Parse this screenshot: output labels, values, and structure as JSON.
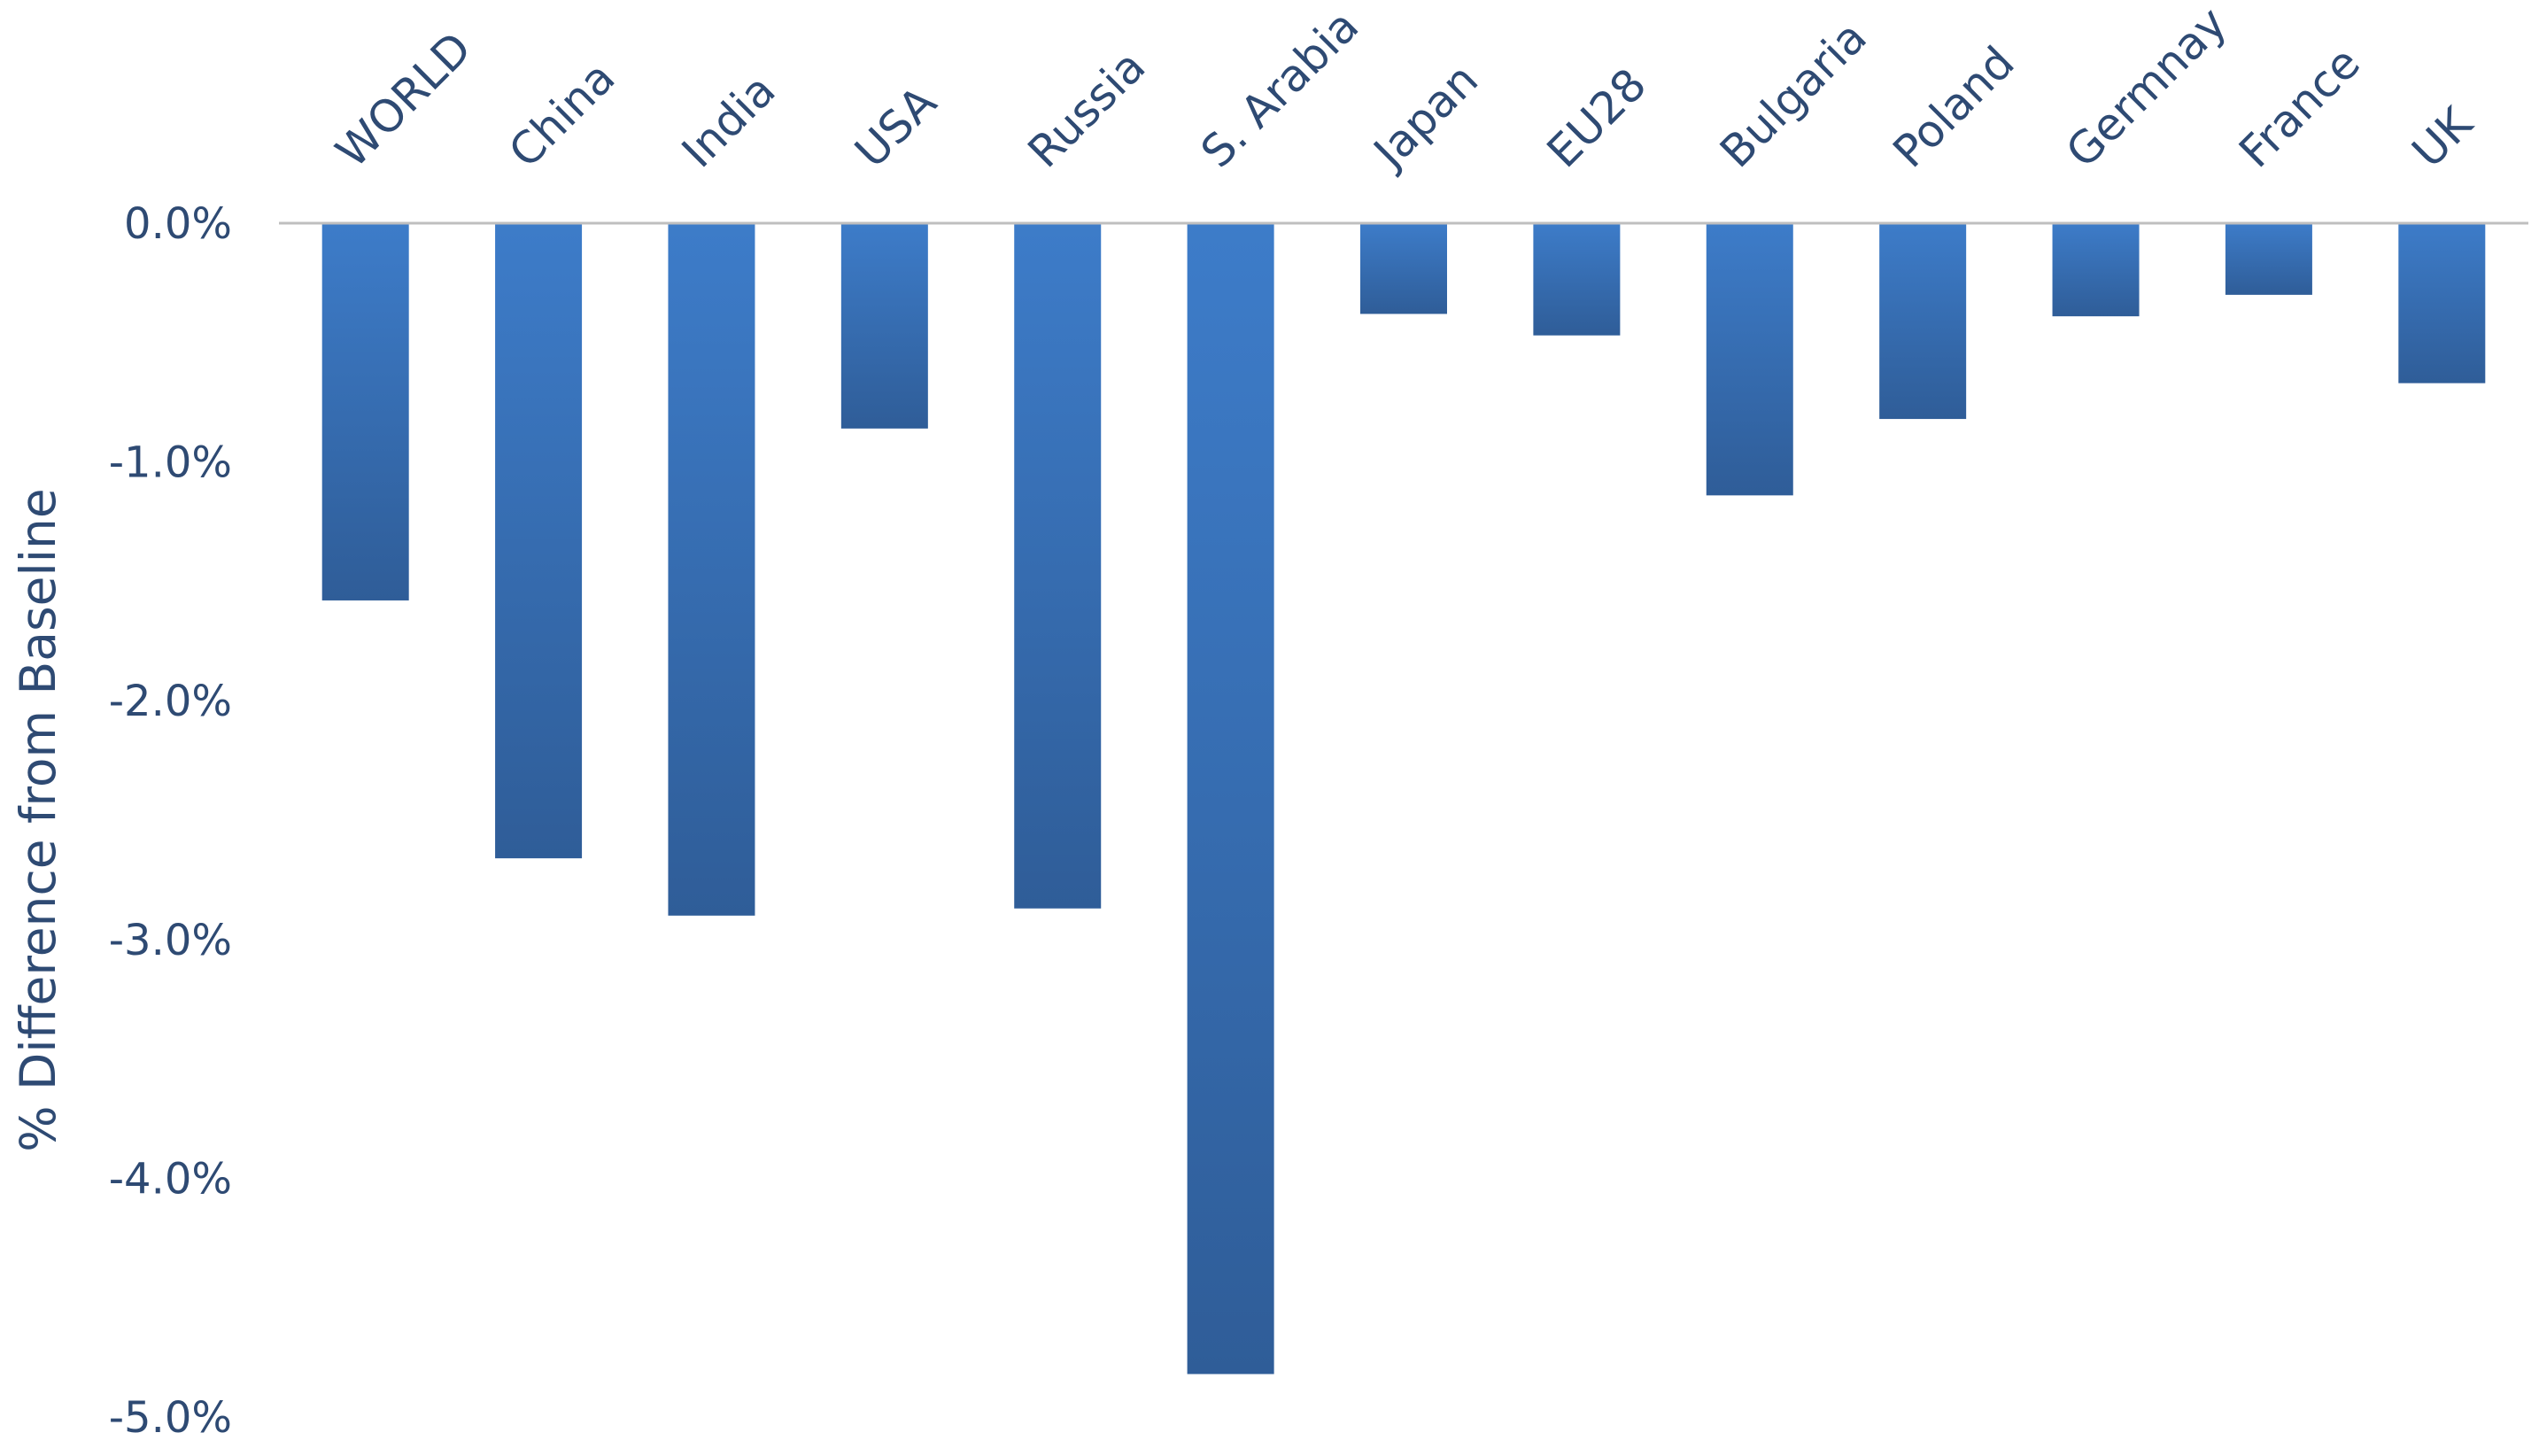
{
  "chart_data": {
    "type": "bar",
    "title": "",
    "xlabel": "",
    "ylabel": "% Difference from Baseline",
    "categories": [
      "WORLD",
      "China",
      "India",
      "USA",
      "Russia",
      "S. Arabia",
      "Japan",
      "EU28",
      "Bulgaria",
      "Poland",
      "Germnay",
      "France",
      "UK"
    ],
    "series": [
      {
        "values": [
          -1.58,
          -2.66,
          -2.9,
          -0.86,
          -2.87,
          -4.82,
          -0.38,
          -0.47,
          -1.14,
          -0.82,
          -0.39,
          -0.3,
          -0.67
        ]
      }
    ],
    "ylim": [
      -5.0,
      0.0
    ],
    "yticks": [
      0.0,
      -1.0,
      -2.0,
      -3.0,
      -4.0,
      -5.0
    ],
    "ytick_labels": [
      "0.0%",
      "-1.0%",
      "-2.0%",
      "-3.0%",
      "-4.0%",
      "-5.0%"
    ],
    "grid": false,
    "legend": "none",
    "category_labels_position": "top, rotated",
    "colors": {
      "bar_light": "#3d7cc9",
      "bar_dark": "#2f5d98",
      "text": "#2e4a73",
      "axis": "#bfbfbf"
    }
  }
}
